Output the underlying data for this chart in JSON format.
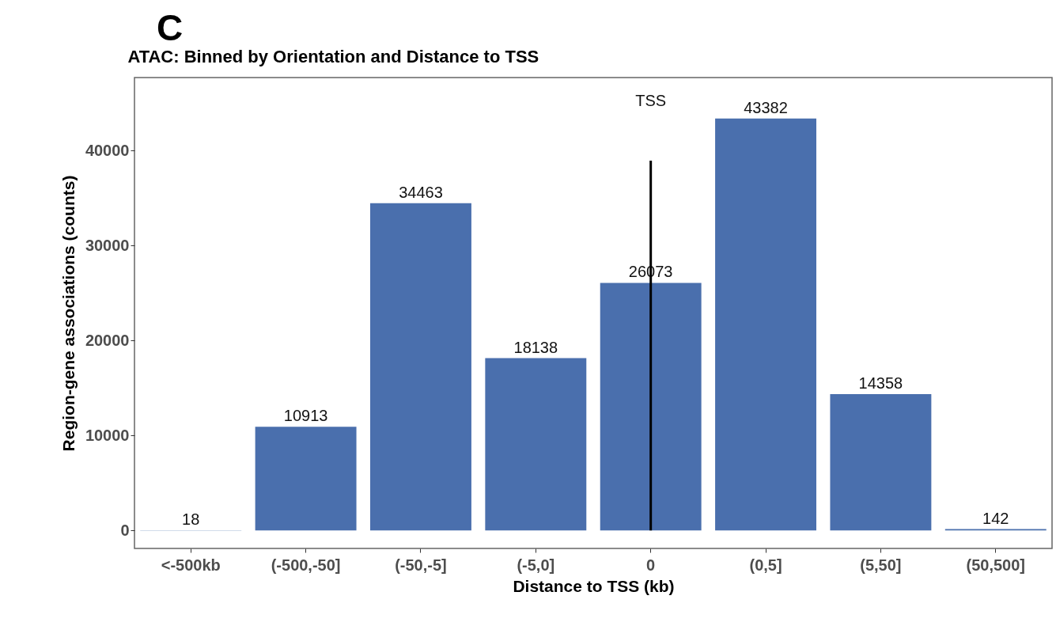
{
  "chart_data": {
    "type": "bar",
    "title": "ATAC: Binned by Orientation and Distance to TSS",
    "xlabel": "Distance to TSS (kb)",
    "ylabel": "Region-gene associations (counts)",
    "categories": [
      "<-500kb",
      "(-500,-50]",
      "(-50,-5]",
      "(-5,0]",
      "0",
      "(0,5]",
      "(5,50]",
      "(50,500]"
    ],
    "values": [
      18,
      10913,
      34463,
      18138,
      26073,
      43382,
      14358,
      142
    ],
    "color": "#4a6fad",
    "data_labels": true,
    "ylim": [
      -1900,
      47700
    ],
    "yticks": [
      0,
      10000,
      20000,
      30000,
      40000
    ],
    "ref_lines": [
      {
        "axis": "x",
        "value": "0",
        "label": "TSS",
        "color": "#000000"
      }
    ],
    "annotations": [
      "C"
    ],
    "grid": false
  }
}
